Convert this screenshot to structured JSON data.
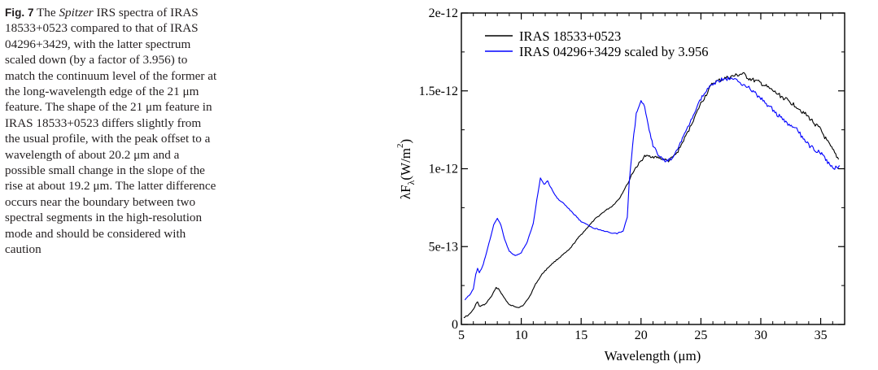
{
  "caption": {
    "label": "Fig. 7",
    "text_before_italic": "The",
    "italic": "Spitzer",
    "text_after_italic": "IRS spectra of IRAS 18533+0523 compared to that of IRAS 04296+3429, with the latter spectrum scaled down (by a factor of 3.956) to match the continuum level of the former at the long-wavelength edge of the 21 μm feature. The shape of the 21 μm feature in IRAS 18533+0523 differs slightly from the usual profile, with the peak offset to a wavelength of about 20.2 μm and a possible small change in the slope of the rise at about 19.2 μm. The latter difference occurs near the boundary between two spectral segments in the high-resolution mode and should be considered with caution"
  },
  "chart_data": {
    "type": "line",
    "xlabel": "Wavelength (μm)",
    "ylabel": {
      "main": "λF",
      "sub": "λ",
      "unit_open": "(W/m",
      "unit_sup": "2",
      "unit_close": ")"
    },
    "xlim": [
      5,
      37
    ],
    "ylim": [
      0,
      2e-12
    ],
    "x_ticks": [
      5,
      10,
      15,
      20,
      25,
      30,
      35
    ],
    "x_tick_labels": [
      "5",
      "10",
      "15",
      "20",
      "25",
      "30",
      "35"
    ],
    "y_ticks": [
      0,
      5e-13,
      1e-12,
      1.5e-12,
      2e-12
    ],
    "y_tick_labels": [
      "0",
      "5e-13",
      "1e-12",
      "1.5e-12",
      "2e-12"
    ],
    "legend_position": "top-left",
    "grid": false,
    "series": [
      {
        "name": "IRAS 18533+0523",
        "color": "#000000",
        "x": [
          5.2,
          5.6,
          6.0,
          6.2,
          6.35,
          6.5,
          7.0,
          7.5,
          7.9,
          8.1,
          8.5,
          9.0,
          9.5,
          9.8,
          10.2,
          10.7,
          11.2,
          11.8,
          12.5,
          13.2,
          14.0,
          14.8,
          15.5,
          16.2,
          17.0,
          17.6,
          18.2,
          18.7,
          19.0,
          19.2,
          19.5,
          20.0,
          20.3,
          20.8,
          21.5,
          22.3,
          23.0,
          24.0,
          25.0,
          26.0,
          27.0,
          28.0,
          28.5,
          29.0,
          30.0,
          31.0,
          32.0,
          33.0,
          34.0,
          35.0,
          35.5,
          36.0,
          36.5
        ],
        "y": [
          4.5e-14,
          6e-14,
          9.5e-14,
          1.3e-13,
          1.45e-13,
          1.15e-13,
          1.3e-13,
          1.8e-13,
          2.35e-13,
          2.3e-13,
          1.8e-13,
          1.25e-13,
          1.15e-13,
          1.1e-13,
          1.25e-13,
          1.8e-13,
          2.6e-13,
          3.3e-13,
          3.85e-13,
          4.3e-13,
          4.8e-13,
          5.6e-13,
          6.2e-13,
          6.8e-13,
          7.3e-13,
          7.6e-13,
          8.1e-13,
          8.8e-13,
          9.2e-13,
          9.6e-13,
          1e-12,
          1.05e-12,
          1.08e-12,
          1.08e-12,
          1.07e-12,
          1.05e-12,
          1.1e-12,
          1.25e-12,
          1.42e-12,
          1.55e-12,
          1.58e-12,
          1.6e-12,
          1.61e-12,
          1.58e-12,
          1.55e-12,
          1.5e-12,
          1.45e-12,
          1.4e-12,
          1.33e-12,
          1.25e-12,
          1.18e-12,
          1.12e-12,
          1.06e-12
        ]
      },
      {
        "name": "IRAS 04296+3429 scaled by 3.956",
        "color": "#0000ff",
        "x": [
          5.3,
          5.7,
          6.0,
          6.2,
          6.35,
          6.5,
          6.75,
          7.0,
          7.3,
          7.7,
          8.0,
          8.3,
          8.6,
          9.0,
          9.5,
          10.0,
          10.5,
          11.0,
          11.3,
          11.6,
          11.9,
          12.2,
          12.6,
          13.0,
          13.5,
          14.0,
          14.5,
          15.0,
          15.5,
          16.0,
          16.5,
          17.0,
          17.5,
          18.0,
          18.5,
          18.85,
          19.0,
          19.3,
          19.6,
          20.0,
          20.3,
          20.6,
          21.0,
          21.5,
          22.0,
          22.5,
          23.0,
          24.0,
          25.0,
          26.0,
          27.0,
          28.0,
          29.0,
          30.0,
          31.0,
          32.0,
          33.0,
          34.0,
          35.0,
          35.5,
          36.0,
          36.6
        ],
        "y": [
          1.6e-13,
          1.9e-13,
          2.3e-13,
          3.2e-13,
          3.6e-13,
          3.3e-13,
          3.7e-13,
          4.3e-13,
          5.2e-13,
          6.4e-13,
          6.8e-13,
          6.4e-13,
          5.5e-13,
          4.7e-13,
          4.4e-13,
          4.6e-13,
          5.3e-13,
          6.5e-13,
          8e-13,
          9.4e-13,
          9e-13,
          9.2e-13,
          8.6e-13,
          8.1e-13,
          7.8e-13,
          7.4e-13,
          7e-13,
          6.6e-13,
          6.4e-13,
          6.2e-13,
          6.1e-13,
          6e-13,
          5.85e-13,
          5.85e-13,
          6e-13,
          6.9e-13,
          9e-13,
          1.15e-12,
          1.35e-12,
          1.43e-12,
          1.4e-12,
          1.28e-12,
          1.15e-12,
          1.08e-12,
          1.05e-12,
          1.06e-12,
          1.12e-12,
          1.28e-12,
          1.45e-12,
          1.55e-12,
          1.58e-12,
          1.57e-12,
          1.52e-12,
          1.45e-12,
          1.38e-12,
          1.3e-12,
          1.25e-12,
          1.15e-12,
          1.1e-12,
          1.05e-12,
          1e-12,
          1.02e-12
        ]
      }
    ]
  }
}
